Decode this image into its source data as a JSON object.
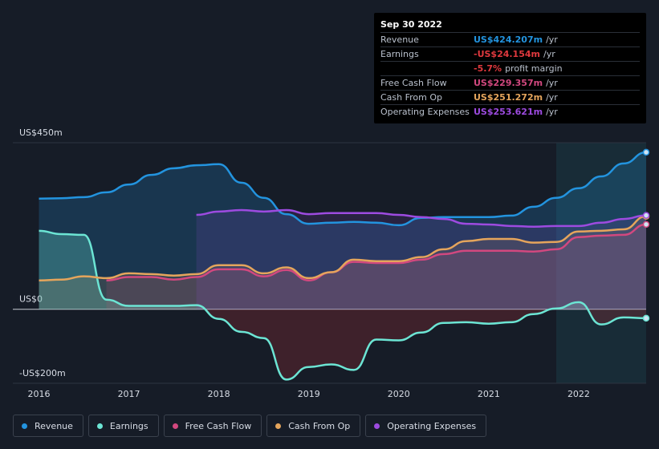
{
  "chart_data": {
    "type": "line",
    "x": [
      2016,
      2016.25,
      2016.5,
      2016.75,
      2017,
      2017.25,
      2017.5,
      2017.75,
      2018,
      2018.25,
      2018.5,
      2018.75,
      2019,
      2019.25,
      2019.5,
      2019.75,
      2020,
      2020.25,
      2020.5,
      2020.75,
      2021,
      2021.25,
      2021.5,
      2021.75,
      2022,
      2022.25,
      2022.5,
      2022.75
    ],
    "xlim": [
      2015.71,
      2022.75
    ],
    "xticks": [
      2016,
      2017,
      2018,
      2019,
      2020,
      2021,
      2022
    ],
    "ylim": [
      -200,
      450
    ],
    "yticks": [
      {
        "value": 450,
        "label": "US$450m"
      },
      {
        "value": 0,
        "label": "US$0"
      },
      {
        "value": -200,
        "label": "-US$200m"
      }
    ],
    "series": [
      {
        "name": "Revenue",
        "color": "#2394df",
        "values": [
          299,
          300,
          303,
          316,
          337,
          363,
          381,
          389,
          392,
          342,
          301,
          257,
          231,
          234,
          236,
          234,
          227,
          247,
          249,
          249,
          249,
          253,
          277,
          301,
          327,
          359,
          394,
          424.207
        ]
      },
      {
        "name": "Earnings",
        "color": "#6ce5d4",
        "values": [
          212,
          203,
          201,
          26,
          9,
          9,
          9,
          11,
          -26,
          -61,
          -78,
          -190,
          -156,
          -149,
          -164,
          -82,
          -84,
          -63,
          -37,
          -35,
          -39,
          -35,
          -13,
          2,
          19,
          -41,
          -22,
          -24.154
        ]
      },
      {
        "name": "Free Cash Flow",
        "color": "#d2487f",
        "values": [
          null,
          null,
          null,
          78,
          87,
          87,
          80,
          87,
          108,
          108,
          89,
          106,
          78,
          100,
          128,
          125,
          125,
          134,
          149,
          158,
          158,
          158,
          156,
          162,
          195,
          199,
          201,
          229.357
        ]
      },
      {
        "name": "Cash From Op",
        "color": "#e5a55c",
        "values": [
          78,
          80,
          89,
          84,
          97,
          95,
          91,
          95,
          119,
          119,
          97,
          113,
          84,
          100,
          134,
          130,
          130,
          141,
          162,
          184,
          190,
          190,
          180,
          182,
          210,
          212,
          216,
          251.272
        ]
      },
      {
        "name": "Operating Expenses",
        "color": "#9d4be0",
        "values": [
          null,
          null,
          null,
          null,
          null,
          null,
          null,
          255,
          264,
          268,
          264,
          268,
          257,
          260,
          260,
          260,
          255,
          249,
          244,
          231,
          229,
          225,
          223,
          225,
          225,
          234,
          244,
          253.621
        ]
      }
    ]
  },
  "tooltip": {
    "date": "Sep 30 2022",
    "rows": [
      {
        "label": "Revenue",
        "value": "US$424.207m",
        "unit": "/yr",
        "color": "#2394df"
      },
      {
        "label": "Earnings",
        "value": "-US$24.154m",
        "unit": "/yr",
        "color": "#e0393e"
      },
      {
        "label": "",
        "value": "-5.7%",
        "unit": "profit margin",
        "color": "#e0393e"
      },
      {
        "label": "Free Cash Flow",
        "value": "US$229.357m",
        "unit": "/yr",
        "color": "#d2487f"
      },
      {
        "label": "Cash From Op",
        "value": "US$251.272m",
        "unit": "/yr",
        "color": "#e5a55c"
      },
      {
        "label": "Operating Expenses",
        "value": "US$253.621m",
        "unit": "/yr",
        "color": "#9d4be0"
      }
    ]
  }
}
